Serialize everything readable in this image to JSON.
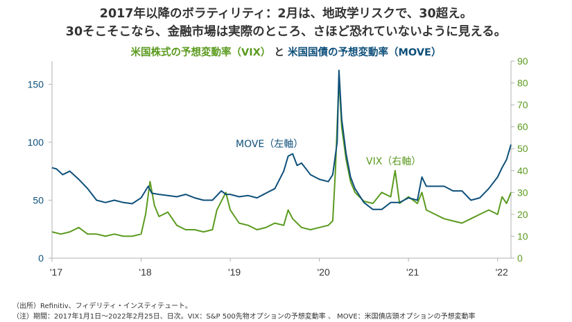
{
  "title_line1": "2017年以降のボラティリティ：2月は、地政学リスクで、30超え。",
  "title_line2": "30そこそこなら、金融市場は実際のところ、さほど恐れていないように見える。",
  "subtitle": {
    "vix_part": "米国株式の予想変動率（VIX）",
    "connector": "と",
    "move_part": "米国国債の予想変動率（MOVE）"
  },
  "colors": {
    "move": "#0d4f7a",
    "vix": "#5a9a1e",
    "axis": "#b0b0b0"
  },
  "notes": {
    "source": "（出所）Refinitiv、フィデリティ・インスティテュート。",
    "note": "（注）期間：2017年1月1日～2022年2月25日、日次。VIX：S&P 500先物オプションの予想変動率 、 MOVE：米国債店頭オプションの予想変動率"
  },
  "chart_data": {
    "type": "line",
    "x_ticks": [
      "'17",
      "'18",
      "'19",
      "'20",
      "'21",
      "'22"
    ],
    "x_range": [
      2017.0,
      2022.15
    ],
    "left_axis": {
      "ticks": [
        0,
        50,
        100,
        150
      ],
      "range": [
        0,
        170
      ]
    },
    "right_axis": {
      "ticks": [
        0,
        10,
        20,
        30,
        40,
        50,
        60,
        70,
        80,
        90
      ],
      "range": [
        0,
        90
      ]
    },
    "series": [
      {
        "name": "MOVE（左軸）",
        "axis": "left",
        "x": [
          2017.0,
          2017.05,
          2017.12,
          2017.2,
          2017.3,
          2017.4,
          2017.5,
          2017.6,
          2017.7,
          2017.8,
          2017.9,
          2018.0,
          2018.08,
          2018.12,
          2018.2,
          2018.3,
          2018.4,
          2018.5,
          2018.6,
          2018.7,
          2018.8,
          2018.9,
          2018.95,
          2019.0,
          2019.1,
          2019.2,
          2019.3,
          2019.4,
          2019.5,
          2019.6,
          2019.65,
          2019.7,
          2019.75,
          2019.8,
          2019.9,
          2020.0,
          2020.1,
          2020.15,
          2020.2,
          2020.22,
          2020.25,
          2020.3,
          2020.35,
          2020.4,
          2020.5,
          2020.6,
          2020.7,
          2020.8,
          2020.9,
          2021.0,
          2021.1,
          2021.15,
          2021.2,
          2021.3,
          2021.4,
          2021.5,
          2021.6,
          2021.7,
          2021.8,
          2021.9,
          2022.0,
          2022.05,
          2022.1,
          2022.15
        ],
        "values": [
          78,
          77,
          72,
          75,
          68,
          60,
          50,
          48,
          50,
          48,
          47,
          52,
          62,
          56,
          55,
          54,
          53,
          55,
          52,
          50,
          50,
          58,
          55,
          55,
          53,
          54,
          52,
          56,
          60,
          75,
          88,
          90,
          80,
          82,
          72,
          68,
          66,
          72,
          100,
          162,
          120,
          90,
          70,
          60,
          48,
          42,
          42,
          48,
          48,
          52,
          50,
          70,
          62,
          62,
          62,
          58,
          58,
          50,
          52,
          60,
          70,
          78,
          85,
          98
        ]
      },
      {
        "name": "VIX（右軸）",
        "axis": "right",
        "x": [
          2017.0,
          2017.1,
          2017.2,
          2017.3,
          2017.4,
          2017.5,
          2017.6,
          2017.7,
          2017.8,
          2017.9,
          2018.0,
          2018.05,
          2018.1,
          2018.15,
          2018.2,
          2018.3,
          2018.4,
          2018.5,
          2018.6,
          2018.7,
          2018.8,
          2018.85,
          2018.95,
          2019.0,
          2019.1,
          2019.2,
          2019.3,
          2019.4,
          2019.5,
          2019.6,
          2019.65,
          2019.7,
          2019.8,
          2019.9,
          2020.0,
          2020.1,
          2020.15,
          2020.18,
          2020.22,
          2020.25,
          2020.3,
          2020.35,
          2020.4,
          2020.5,
          2020.6,
          2020.7,
          2020.8,
          2020.85,
          2020.9,
          2021.0,
          2021.1,
          2021.15,
          2021.2,
          2021.3,
          2021.4,
          2021.5,
          2021.6,
          2021.7,
          2021.8,
          2021.9,
          2022.0,
          2022.05,
          2022.1,
          2022.15
        ],
        "values": [
          12,
          11,
          12,
          14,
          11,
          11,
          10,
          11,
          10,
          10,
          11,
          20,
          35,
          24,
          19,
          21,
          15,
          13,
          13,
          12,
          13,
          22,
          30,
          22,
          16,
          15,
          13,
          14,
          16,
          15,
          22,
          18,
          14,
          13,
          14,
          15,
          17,
          40,
          82,
          60,
          45,
          35,
          30,
          26,
          25,
          30,
          28,
          40,
          25,
          28,
          25,
          30,
          22,
          20,
          18,
          17,
          16,
          18,
          20,
          22,
          20,
          28,
          25,
          30
        ]
      }
    ],
    "annotations": [
      "MOVE（左軸）",
      "VIX（右軸）"
    ]
  }
}
